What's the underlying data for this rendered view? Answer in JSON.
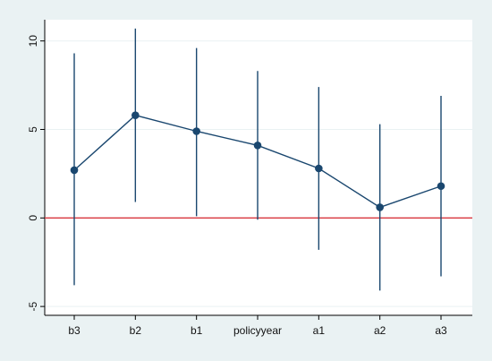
{
  "chart_data": {
    "type": "line",
    "title": "",
    "xlabel": "",
    "ylabel": "",
    "categories": [
      "b3",
      "b2",
      "b1",
      "policyyear",
      "a1",
      "a2",
      "a3"
    ],
    "series": [
      {
        "estimate": [
          2.7,
          5.8,
          4.9,
          4.1,
          2.8,
          0.6,
          1.8
        ],
        "lower": [
          -3.8,
          0.9,
          0.1,
          -0.1,
          -1.8,
          -4.1,
          -3.3
        ],
        "upper": [
          9.3,
          10.7,
          9.6,
          8.3,
          7.4,
          5.3,
          6.9
        ]
      }
    ],
    "ylim": [
      -5.5,
      11.2
    ],
    "yticks": [
      -5,
      0,
      5,
      10
    ],
    "ytick_labels": [
      "-5",
      "0",
      "5",
      "10"
    ],
    "reference_line": {
      "y": 0,
      "color": "#d9363e"
    },
    "grid": "horizontal",
    "legend": "none",
    "colors": {
      "series": "#1a476f",
      "frame_background": "#eaf2f3",
      "plot_background": "#ffffff",
      "grid": "#eaf2f3"
    }
  }
}
